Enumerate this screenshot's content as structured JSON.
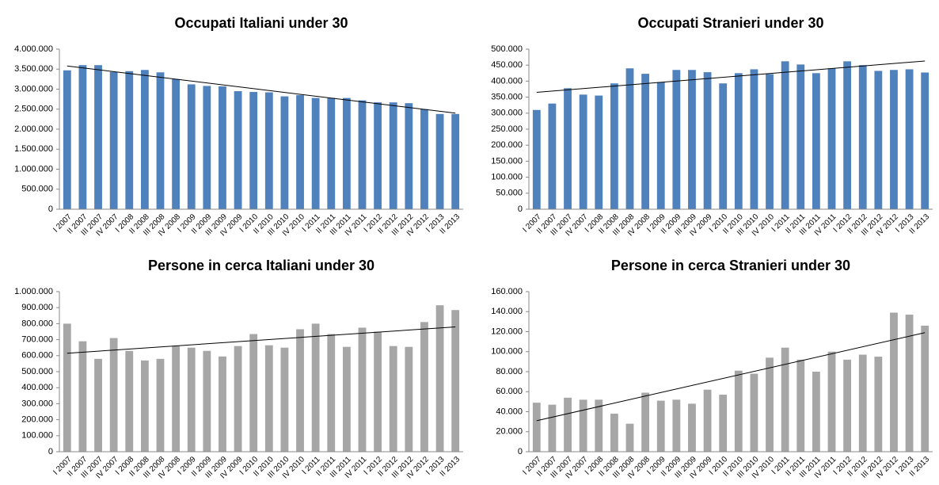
{
  "chart_data": [
    {
      "type": "bar",
      "title": "Occupati Italiani under 30",
      "color": "#4f81bd",
      "categories": [
        "I 2007",
        "II 2007",
        "III 2007",
        "IV 2007",
        "I 2008",
        "II 2008",
        "III 2008",
        "IV 2008",
        "I 2009",
        "II 2009",
        "III 2009",
        "IV 2009",
        "I 2010",
        "II 2010",
        "III 2010",
        "IV 2010",
        "I 2011",
        "II 2011",
        "III 2011",
        "IV 2011",
        "I 2012",
        "II 2012",
        "III 2012",
        "IV 2012",
        "I 2013",
        "II 2013"
      ],
      "values": [
        3470000,
        3600000,
        3600000,
        3430000,
        3450000,
        3480000,
        3420000,
        3250000,
        3120000,
        3080000,
        3070000,
        2950000,
        2930000,
        2920000,
        2820000,
        2850000,
        2780000,
        2780000,
        2780000,
        2720000,
        2670000,
        2670000,
        2650000,
        2500000,
        2380000,
        2380000
      ],
      "trend": [
        3580000,
        2400000
      ],
      "ylim": [
        0,
        4000000
      ],
      "yticks": [
        0,
        {
          "value": 500000,
          "label": "500.000"
        },
        {
          "value": 1000000,
          "label": "1.000.000"
        },
        {
          "value": 1500000,
          "label": "1.500.000"
        },
        {
          "value": 2000000,
          "label": "2.000.000"
        },
        {
          "value": 2500000,
          "label": "2.500.000"
        },
        {
          "value": 3000000,
          "label": "3.000.000"
        },
        {
          "value": 3500000,
          "label": "3.500.000"
        },
        {
          "value": 4000000,
          "label": "4.000.000"
        }
      ]
    },
    {
      "type": "bar",
      "title": "Occupati Stranieri under 30",
      "color": "#4f81bd",
      "categories": [
        "I 2007",
        "II 2007",
        "III 2007",
        "IV 2007",
        "I 2008",
        "II 2008",
        "III 2008",
        "IV 2008",
        "I 2009",
        "II 2009",
        "III 2009",
        "IV 2009",
        "I 2010",
        "II 2010",
        "III 2010",
        "IV 2010",
        "I 2011",
        "II 2011",
        "III 2011",
        "IV 2011",
        "I 2012",
        "II 2012",
        "III 2012",
        "IV 2012",
        "I 2013",
        "II 2013"
      ],
      "values": [
        310000,
        330000,
        378000,
        358000,
        355000,
        393000,
        440000,
        423000,
        397000,
        435000,
        435000,
        428000,
        393000,
        425000,
        437000,
        422000,
        462000,
        452000,
        425000,
        440000,
        462000,
        450000,
        432000,
        435000,
        437000,
        427000
      ],
      "trend": [
        365000,
        463000
      ],
      "ylim": [
        0,
        500000
      ],
      "yticks": [
        0,
        {
          "value": 50000,
          "label": "50.000"
        },
        {
          "value": 100000,
          "label": "100.000"
        },
        {
          "value": 150000,
          "label": "150.000"
        },
        {
          "value": 200000,
          "label": "200.000"
        },
        {
          "value": 250000,
          "label": "250.000"
        },
        {
          "value": 300000,
          "label": "300.000"
        },
        {
          "value": 350000,
          "label": "350.000"
        },
        {
          "value": 400000,
          "label": "400.000"
        },
        {
          "value": 450000,
          "label": "450.000"
        },
        {
          "value": 500000,
          "label": "500.000"
        }
      ]
    },
    {
      "type": "bar",
      "title": "Persone in cerca Italiani under 30",
      "color": "#a6a6a6",
      "categories": [
        "I 2007",
        "II 2007",
        "III 2007",
        "IV 2007",
        "I 2008",
        "II 2008",
        "III 2008",
        "IV 2008",
        "I 2009",
        "II 2009",
        "III 2009",
        "IV 2009",
        "I 2010",
        "II 2010",
        "III 2010",
        "IV 2010",
        "I 2011",
        "II 2011",
        "III 2011",
        "IV 2011",
        "I 2012",
        "II 2012",
        "III 2012",
        "IV 2012",
        "I 2013",
        "II 2013"
      ],
      "values": [
        800000,
        690000,
        580000,
        710000,
        630000,
        570000,
        580000,
        660000,
        650000,
        630000,
        595000,
        660000,
        735000,
        665000,
        650000,
        765000,
        800000,
        735000,
        655000,
        775000,
        750000,
        660000,
        655000,
        810000,
        915000,
        885000
      ],
      "trend": [
        615000,
        780000
      ],
      "ylim": [
        0,
        1000000
      ],
      "yticks": [
        0,
        {
          "value": 100000,
          "label": "100.000"
        },
        {
          "value": 200000,
          "label": "200.000"
        },
        {
          "value": 300000,
          "label": "300.000"
        },
        {
          "value": 400000,
          "label": "400.000"
        },
        {
          "value": 500000,
          "label": "500.000"
        },
        {
          "value": 600000,
          "label": "600.000"
        },
        {
          "value": 700000,
          "label": "700.000"
        },
        {
          "value": 800000,
          "label": "800.000"
        },
        {
          "value": 900000,
          "label": "900.000"
        },
        {
          "value": 1000000,
          "label": "1.000.000"
        }
      ]
    },
    {
      "type": "bar",
      "title": "Persone in cerca Stranieri under 30",
      "color": "#a6a6a6",
      "categories": [
        "I 2007",
        "II 2007",
        "III 2007",
        "IV 2007",
        "I 2008",
        "II 2008",
        "III 2008",
        "IV 2008",
        "I 2009",
        "II 2009",
        "III 2009",
        "IV 2009",
        "I 2010",
        "II 2010",
        "III 2010",
        "IV 2010",
        "I 2011",
        "II 2011",
        "III 2011",
        "IV 2011",
        "I 2012",
        "II 2012",
        "III 2012",
        "IV 2012",
        "I 2013",
        "II 2013"
      ],
      "values": [
        49000,
        47000,
        54000,
        52000,
        52000,
        38000,
        28000,
        59000,
        51000,
        52000,
        48000,
        62000,
        57000,
        81000,
        78000,
        94000,
        104000,
        92000,
        80000,
        100000,
        92000,
        97000,
        95000,
        139000,
        137000,
        126000
      ],
      "trend": [
        31000,
        119000
      ],
      "ylim": [
        0,
        160000
      ],
      "yticks": [
        0,
        {
          "value": 20000,
          "label": "20.000"
        },
        {
          "value": 40000,
          "label": "40.000"
        },
        {
          "value": 60000,
          "label": "60.000"
        },
        {
          "value": 80000,
          "label": "80.000"
        },
        {
          "value": 100000,
          "label": "100.000"
        },
        {
          "value": 120000,
          "label": "120.000"
        },
        {
          "value": 140000,
          "label": "140.000"
        },
        {
          "value": 160000,
          "label": "160.000"
        }
      ]
    }
  ]
}
